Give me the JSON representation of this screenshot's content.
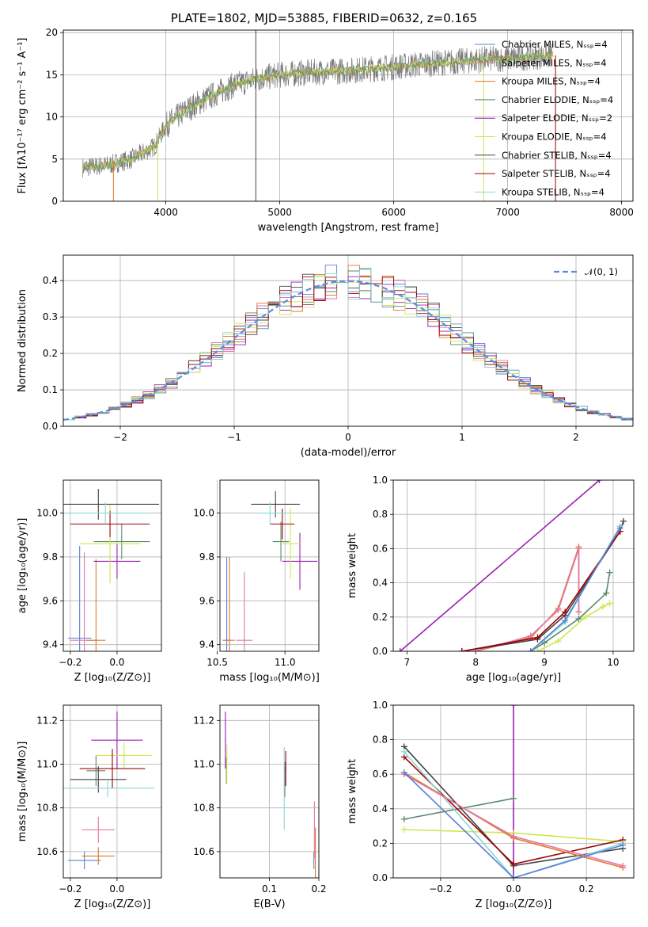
{
  "colors": {
    "chabrier_miles": "#5b7fd6",
    "salpeter_miles": "#e377a8",
    "kroupa_miles": "#e0782a",
    "chabrier_elodie": "#5a8a6a",
    "salpeter_elodie": "#9a1fb0",
    "kroupa_elodie": "#cfe650",
    "chabrier_stelib": "#444444",
    "salpeter_stelib": "#a00000",
    "kroupa_stelib": "#8ad6d6",
    "spectrum": "#7a7a7a",
    "normal": "#5b8be0"
  },
  "chart_data": [
    {
      "id": "spectrum",
      "type": "line",
      "title": "PLATE=1802, MJD=53885, FIBERID=0632, z=0.165",
      "xlabel": "wavelength [Angstrom, rest frame]",
      "ylabel": "Flux [fλ10⁻¹⁷ erg cm⁻² s⁻¹ A⁻¹]",
      "xlim": [
        3100,
        8100
      ],
      "ylim": [
        0,
        20.3
      ],
      "xticks": [
        "4000",
        "5000",
        "6000",
        "7000",
        "8000"
      ],
      "yticks": [
        "0",
        "5",
        "10",
        "15",
        "20"
      ],
      "legend_position": "right",
      "legend": [
        {
          "label": "Chabrier MILES, Nₛₛₚ=4",
          "color_key": "chabrier_miles"
        },
        {
          "label": "Salpeter MILES, Nₛₛₚ=4",
          "color_key": "salpeter_miles"
        },
        {
          "label": "Kroupa MILES, Nₛₛₚ=4",
          "color_key": "kroupa_miles"
        },
        {
          "label": "Chabrier ELODIE, Nₛₛₚ=4",
          "color_key": "chabrier_elodie"
        },
        {
          "label": "Salpeter ELODIE, Nₛₛₚ=2",
          "color_key": "salpeter_elodie"
        },
        {
          "label": "Kroupa ELODIE, Nₛₛₚ=4",
          "color_key": "kroupa_elodie"
        },
        {
          "label": "Chabrier STELIB, Nₛₛₚ=4",
          "color_key": "chabrier_stelib"
        },
        {
          "label": "Salpeter STELIB, Nₛₛₚ=4",
          "color_key": "salpeter_stelib"
        },
        {
          "label": "Kroupa STELIB, Nₛₛₚ=4",
          "color_key": "kroupa_stelib"
        }
      ],
      "continuum_x": [
        3270,
        3500,
        3700,
        3900,
        4000,
        4200,
        4400,
        4600,
        4800,
        5000,
        5300,
        5600,
        5900,
        6200,
        6500,
        6800,
        7100,
        7400
      ],
      "continuum_y": [
        4.0,
        4.3,
        5.0,
        6.5,
        9.0,
        11.0,
        12.5,
        13.8,
        14.5,
        15.0,
        15.3,
        15.5,
        15.8,
        16.2,
        16.5,
        16.8,
        17.0,
        17.3
      ],
      "spikes": [
        {
          "x": 3540,
          "y": 0
        },
        {
          "x": 3930,
          "y": 0
        },
        {
          "x": 4790,
          "y": 0
        },
        {
          "x": 4790,
          "y": 20.3
        },
        {
          "x": 6790,
          "y": 0
        },
        {
          "x": 7420,
          "y": 0
        }
      ]
    },
    {
      "id": "residuals",
      "type": "line",
      "xlabel": "(data-model)/error",
      "ylabel": "Normed distribution",
      "xlim": [
        -2.5,
        2.5
      ],
      "ylim": [
        0,
        0.47
      ],
      "xticks": [
        "−2",
        "−1",
        "0",
        "1",
        "2"
      ],
      "yticks": [
        "0.0",
        "0.1",
        "0.2",
        "0.3",
        "0.4"
      ],
      "legend_position": "top-right",
      "legend": [
        {
          "label": "𝒩(0, 1)",
          "color_key": "normal"
        }
      ],
      "bin_width": 0.1,
      "normal_mean": 0,
      "normal_sigma": 1
    },
    {
      "id": "age_vs_Z",
      "type": "scatter",
      "xlabel": "Z [log₁₀(Z/Z⊙)]",
      "ylabel": "age  [log₁₀(age/yr)]",
      "xlim": [
        -0.23,
        0.19
      ],
      "ylim": [
        9.37,
        10.15
      ],
      "xticks": [
        "−0.2",
        "0.0"
      ],
      "yticks": [
        "9.4",
        "9.6",
        "9.8",
        "10.0"
      ],
      "points": [
        {
          "key": "chabrier_miles",
          "x": -0.16,
          "xerr": 0.05,
          "y": 9.43,
          "yerr": 0.42
        },
        {
          "key": "salpeter_miles",
          "x": -0.14,
          "xerr": 0.06,
          "y": 9.42,
          "yerr": 0.4
        },
        {
          "key": "kroupa_miles",
          "x": -0.09,
          "xerr": 0.04,
          "y": 9.42,
          "yerr": 0.37
        },
        {
          "key": "chabrier_elodie",
          "x": 0.02,
          "xerr": 0.12,
          "y": 9.87,
          "yerr": 0.08
        },
        {
          "key": "salpeter_elodie",
          "x": 0.0,
          "xerr": 0.1,
          "y": 9.78,
          "yerr": 0.08
        },
        {
          "key": "kroupa_elodie",
          "x": -0.03,
          "xerr": 0.13,
          "y": 9.86,
          "yerr": 0.18
        },
        {
          "key": "chabrier_stelib",
          "x": -0.08,
          "xerr": 0.26,
          "y": 10.04,
          "yerr": 0.07
        },
        {
          "key": "salpeter_stelib",
          "x": -0.03,
          "xerr": 0.17,
          "y": 9.95,
          "yerr": 0.06
        },
        {
          "key": "kroupa_stelib",
          "x": -0.05,
          "xerr": 0.19,
          "y": 10.0,
          "yerr": 0.05
        }
      ]
    },
    {
      "id": "age_vs_mass",
      "type": "scatter",
      "xlabel": "mass [log₁₀(M/M⊙)]",
      "ylabel": "",
      "xlim": [
        10.52,
        11.25
      ],
      "ylim": [
        9.37,
        10.15
      ],
      "xticks": [
        "10.5",
        "11.0"
      ],
      "yticks": [
        "9.4",
        "9.6",
        "9.8",
        "10.0"
      ],
      "points": [
        {
          "key": "chabrier_miles",
          "x": 10.57,
          "xerr": 0.03,
          "y": 9.42,
          "yerr": 0.38
        },
        {
          "key": "salpeter_miles",
          "x": 10.7,
          "xerr": 0.06,
          "y": 9.42,
          "yerr": 0.31
        },
        {
          "key": "kroupa_miles",
          "x": 10.59,
          "xerr": 0.04,
          "y": 9.42,
          "yerr": 0.38
        },
        {
          "key": "chabrier_elodie",
          "x": 10.97,
          "xerr": 0.06,
          "y": 9.87,
          "yerr": 0.09
        },
        {
          "key": "salpeter_elodie",
          "x": 11.11,
          "xerr": 0.13,
          "y": 9.78,
          "yerr": 0.13
        },
        {
          "key": "kroupa_elodie",
          "x": 11.04,
          "xerr": 0.07,
          "y": 9.86,
          "yerr": 0.16
        },
        {
          "key": "chabrier_stelib",
          "x": 10.93,
          "xerr": 0.18,
          "y": 10.04,
          "yerr": 0.06
        },
        {
          "key": "salpeter_stelib",
          "x": 10.98,
          "xerr": 0.09,
          "y": 9.95,
          "yerr": 0.07
        },
        {
          "key": "kroupa_stelib",
          "x": 10.89,
          "xerr": 0.13,
          "y": 10.0,
          "yerr": 0.05
        }
      ]
    },
    {
      "id": "weight_vs_age",
      "type": "line",
      "xlabel": "age  [log₁₀(age/yr)]",
      "ylabel": "mass weight",
      "xlim": [
        6.8,
        10.3
      ],
      "ylim": [
        0,
        1.0
      ],
      "xticks": [
        "7",
        "8",
        "9",
        "10"
      ],
      "yticks": [
        "0.0",
        "0.2",
        "0.4",
        "0.6",
        "0.8",
        "1.0"
      ],
      "series": [
        {
          "key": "salpeter_elodie",
          "x": [
            6.9,
            9.8
          ],
          "y": [
            0.0,
            1.0
          ]
        },
        {
          "key": "kroupa_miles",
          "x": [
            8.0,
            8.8,
            9.2,
            9.5,
            9.5
          ],
          "y": [
            0.0,
            0.08,
            0.25,
            0.61,
            0.23
          ]
        },
        {
          "key": "salpeter_miles",
          "x": [
            8.0,
            8.8,
            9.2,
            9.5,
            9.5
          ],
          "y": [
            0.0,
            0.09,
            0.24,
            0.6,
            0.23
          ]
        },
        {
          "key": "chabrier_elodie",
          "x": [
            8.8,
            9.0,
            9.5,
            9.9,
            9.95
          ],
          "y": [
            0.0,
            0.05,
            0.19,
            0.34,
            0.46
          ]
        },
        {
          "key": "kroupa_elodie",
          "x": [
            8.9,
            9.2,
            9.6,
            9.85,
            9.95
          ],
          "y": [
            0.0,
            0.06,
            0.2,
            0.26,
            0.28
          ]
        },
        {
          "key": "chabrier_stelib",
          "x": [
            7.8,
            8.9,
            9.3,
            10.1,
            10.15
          ],
          "y": [
            0.0,
            0.07,
            0.21,
            0.7,
            0.76
          ]
        },
        {
          "key": "salpeter_stelib",
          "x": [
            7.8,
            8.9,
            9.3,
            10.1
          ],
          "y": [
            0.0,
            0.08,
            0.23,
            0.7
          ]
        },
        {
          "key": "kroupa_stelib",
          "x": [
            8.8,
            9.3,
            10.1
          ],
          "y": [
            0.0,
            0.17,
            0.73
          ]
        },
        {
          "key": "chabrier_miles",
          "x": [
            8.8,
            9.3,
            10.1
          ],
          "y": [
            0.0,
            0.18,
            0.72
          ]
        }
      ]
    },
    {
      "id": "mass_vs_Z",
      "type": "scatter",
      "xlabel": "Z [log₁₀(Z/Z⊙)]",
      "ylabel": "mass [log₁₀(M/M⊙)]",
      "xlim": [
        -0.23,
        0.19
      ],
      "ylim": [
        10.48,
        11.27
      ],
      "xticks": [
        "−0.2",
        "0.0"
      ],
      "yticks": [
        "10.6",
        "10.8",
        "11.0",
        "11.2"
      ],
      "points": [
        {
          "key": "chabrier_miles",
          "x": -0.14,
          "xerr": 0.07,
          "y": 10.56,
          "yerr": 0.04
        },
        {
          "key": "salpeter_miles",
          "x": -0.08,
          "xerr": 0.07,
          "y": 10.7,
          "yerr": 0.06
        },
        {
          "key": "kroupa_miles",
          "x": -0.08,
          "xerr": 0.07,
          "y": 10.58,
          "yerr": 0.04
        },
        {
          "key": "chabrier_elodie",
          "x": -0.09,
          "xerr": 0.04,
          "y": 10.97,
          "yerr": 0.07
        },
        {
          "key": "salpeter_elodie",
          "x": 0.0,
          "xerr": 0.11,
          "y": 11.11,
          "yerr": 0.13
        },
        {
          "key": "kroupa_elodie",
          "x": 0.03,
          "xerr": 0.12,
          "y": 11.04,
          "yerr": 0.06
        },
        {
          "key": "chabrier_stelib",
          "x": -0.08,
          "xerr": 0.12,
          "y": 10.93,
          "yerr": 0.06
        },
        {
          "key": "salpeter_stelib",
          "x": -0.02,
          "xerr": 0.14,
          "y": 10.98,
          "yerr": 0.09
        },
        {
          "key": "kroupa_stelib",
          "x": -0.04,
          "xerr": 0.2,
          "y": 10.89,
          "yerr": 0.04
        }
      ]
    },
    {
      "id": "mass_vs_ebv",
      "type": "scatter",
      "xlabel": "E(B-V)",
      "ylabel": "",
      "xlim": [
        0.0,
        0.2
      ],
      "ylim": [
        10.48,
        11.27
      ],
      "xticks": [
        "0.1",
        "0.2"
      ],
      "yticks": [
        "10.6",
        "10.8",
        "11.0",
        "11.2"
      ],
      "points": [
        {
          "key": "chabrier_miles",
          "x": 0.19,
          "xerr": 0.001,
          "y": 10.56,
          "yerr": 0.04
        },
        {
          "key": "salpeter_miles",
          "x": 0.191,
          "xerr": 0.001,
          "y": 10.7,
          "yerr": 0.13
        },
        {
          "key": "kroupa_miles",
          "x": 0.193,
          "xerr": 0.001,
          "y": 10.58,
          "yerr": 0.13
        },
        {
          "key": "chabrier_elodie",
          "x": 0.013,
          "xerr": 0.001,
          "y": 10.97,
          "yerr": 0.06
        },
        {
          "key": "salpeter_elodie",
          "x": 0.011,
          "xerr": 0.001,
          "y": 11.11,
          "yerr": 0.13
        },
        {
          "key": "kroupa_elodie",
          "x": 0.014,
          "xerr": 0.001,
          "y": 11.0,
          "yerr": 0.09
        },
        {
          "key": "chabrier_stelib",
          "x": 0.131,
          "xerr": 0.001,
          "y": 10.93,
          "yerr": 0.08
        },
        {
          "key": "salpeter_stelib",
          "x": 0.133,
          "xerr": 0.001,
          "y": 10.98,
          "yerr": 0.08
        },
        {
          "key": "kroupa_stelib",
          "x": 0.13,
          "xerr": 0.001,
          "y": 10.89,
          "yerr": 0.19
        }
      ]
    },
    {
      "id": "weight_vs_Z",
      "type": "line",
      "xlabel": "Z [log₁₀(Z/Z⊙)]",
      "ylabel": "mass weight",
      "xlim": [
        -0.33,
        0.33
      ],
      "ylim": [
        0,
        1.0
      ],
      "xticks": [
        "−0.2",
        "0.0",
        "0.2"
      ],
      "yticks": [
        "0.0",
        "0.2",
        "0.4",
        "0.6",
        "0.8",
        "1.0"
      ],
      "series": [
        {
          "key": "salpeter_elodie",
          "x": [
            0.0,
            0.0
          ],
          "y": [
            0.0,
            1.0
          ]
        },
        {
          "key": "chabrier_elodie",
          "x": [
            -0.3,
            0.0
          ],
          "y": [
            0.34,
            0.46
          ]
        },
        {
          "key": "kroupa_elodie",
          "x": [
            -0.3,
            0.0,
            0.3
          ],
          "y": [
            0.28,
            0.26,
            0.21
          ]
        },
        {
          "key": "chabrier_stelib",
          "x": [
            -0.3,
            0.0,
            0.3
          ],
          "y": [
            0.76,
            0.07,
            0.17
          ]
        },
        {
          "key": "salpeter_stelib",
          "x": [
            -0.3,
            0.0,
            0.3
          ],
          "y": [
            0.7,
            0.08,
            0.22
          ]
        },
        {
          "key": "kroupa_stelib",
          "x": [
            -0.3,
            0.0,
            0.3
          ],
          "y": [
            0.73,
            0.0,
            0.2
          ]
        },
        {
          "key": "kroupa_miles",
          "x": [
            -0.3,
            0.0,
            0.3
          ],
          "y": [
            0.61,
            0.23,
            0.06
          ]
        },
        {
          "key": "salpeter_miles",
          "x": [
            -0.3,
            0.0,
            0.3
          ],
          "y": [
            0.6,
            0.24,
            0.07
          ]
        },
        {
          "key": "chabrier_miles",
          "x": [
            -0.3,
            0.0,
            0.3
          ],
          "y": [
            0.61,
            0.0,
            0.19
          ]
        }
      ]
    }
  ]
}
